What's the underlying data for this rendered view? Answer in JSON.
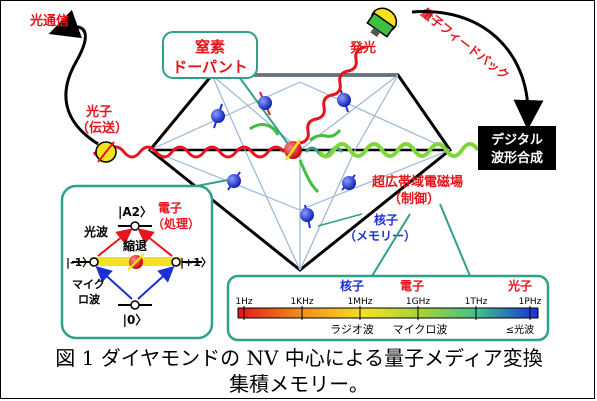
{
  "labels": {
    "optical_comm": "光通信",
    "nitrogen_line1": "窒素",
    "nitrogen_line2": "ドーパント",
    "emission": "発光",
    "quantum_feedback": "量子フィードバック",
    "digital_line1": "デジタル",
    "digital_line2": "波形合成",
    "photon_line1": "光子",
    "photon_line2": "（伝送）",
    "field_line1": "超広帯域電磁場",
    "field_line2": "（制御）",
    "nuclear_line1": "核子",
    "nuclear_line2": "（メモリー）",
    "level_a2": "|A2〉",
    "level_m1": "|-1〉",
    "level_p1": "|+1〉",
    "level_0": "|0〉",
    "lightwave": "光波",
    "electron_line1": "電子",
    "electron_line2": "（処理）",
    "degenerate": "縮退",
    "microwave_line1": "マイク",
    "microwave_line2": "ロ波"
  },
  "spectrum": {
    "headers": [
      "核子",
      "電子",
      "光子"
    ],
    "ticks": [
      "1Hz",
      "1KHz",
      "1MHz",
      "1GHz",
      "1THz",
      "1PHz"
    ],
    "bands": [
      "ラジオ波",
      "マイクロ波",
      "≤光波"
    ]
  },
  "caption": {
    "line1": "図 1 ダイヤモンドの NV 中心による量子メディア変換",
    "line2": "集積メモリー。"
  },
  "colors": {
    "red": "#e8141b",
    "green": "#3fbf3f",
    "blue": "#1a2fd6",
    "teal": "#2fa08a",
    "yellow": "#f4e21e"
  }
}
